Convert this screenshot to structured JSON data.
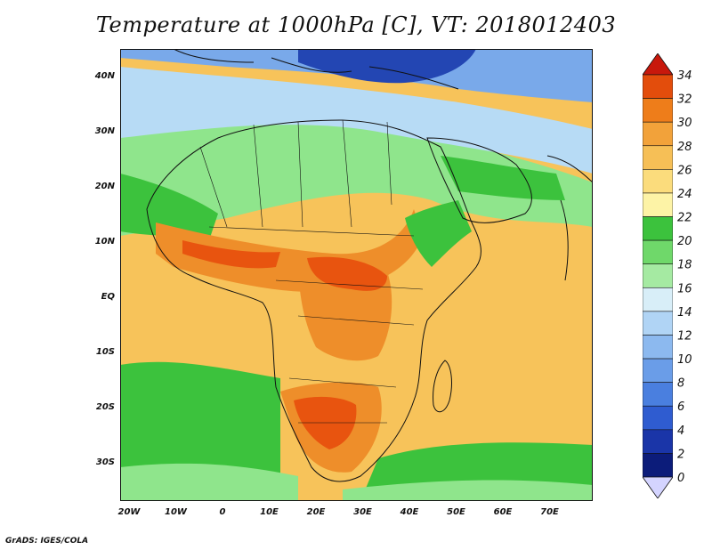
{
  "title": "Temperature at 1000hPa [C], VT: 2018012403",
  "credit": "GrADS: IGES/COLA",
  "axes": {
    "lon_labels": [
      "20W",
      "10W",
      "0",
      "10E",
      "20E",
      "30E",
      "40E",
      "50E",
      "60E",
      "70E"
    ],
    "lat_labels": [
      "40N",
      "30N",
      "20N",
      "10N",
      "EQ",
      "10S",
      "20S",
      "30S"
    ]
  },
  "colorbar": {
    "levels": [
      "0",
      "2",
      "4",
      "6",
      "8",
      "10",
      "12",
      "14",
      "16",
      "18",
      "20",
      "22",
      "24",
      "26",
      "28",
      "30",
      "32",
      "34"
    ],
    "colors": [
      "#0c1c7a",
      "#1a35a8",
      "#2f5cd0",
      "#4a7fdf",
      "#6a9de8",
      "#8cb9ef",
      "#b0d4f5",
      "#d8eef8",
      "#a5eaa2",
      "#6fd86a",
      "#3cc23d",
      "#fdf3a6",
      "#fbdc7c",
      "#f6bf56",
      "#f2a23a",
      "#ee7d1a",
      "#e34d0c",
      "#c8180c"
    ],
    "under_color": "#d4d4ff",
    "over_color": "#c8180c"
  },
  "map_colors": {
    "background": "#f7c35a",
    "warm_orange": "#ee8e2a",
    "hot_red": "#e8540f",
    "green": "#3cc23d",
    "light_green": "#8fe58c",
    "pale_blue": "#b7dbf5",
    "mid_blue": "#79a9ea",
    "deep_blue": "#2346b3",
    "coast_line": "#111111"
  }
}
